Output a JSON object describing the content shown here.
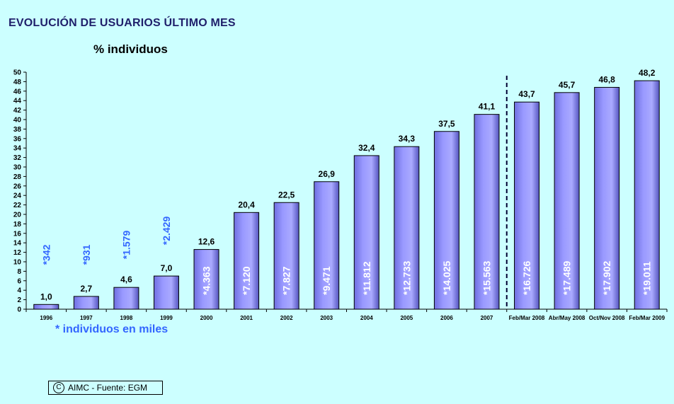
{
  "title": "EVOLUCIÓN DE USUARIOS ÚLTIMO MES",
  "subtitle": "% individuos",
  "note": "* individuos en miles",
  "source": "AIMC - Fuente: EGM",
  "colors": {
    "background": "#ccffff",
    "bar_fill": "#9999ff",
    "bar_edge": "#000000",
    "users_label_outside": "#3366ff",
    "users_label_inside": "#ffffff",
    "title": "#1f1f6b"
  },
  "chart_data": {
    "type": "bar",
    "title": "EVOLUCIÓN DE USUARIOS ÚLTIMO MES",
    "ylabel": "% individuos",
    "xlabel": "",
    "ylim": [
      0,
      50
    ],
    "yticks": [
      0,
      2,
      4,
      6,
      8,
      10,
      12,
      14,
      16,
      18,
      20,
      22,
      24,
      26,
      28,
      30,
      32,
      34,
      36,
      38,
      40,
      42,
      44,
      46,
      48,
      50
    ],
    "grid": false,
    "categories": [
      "1996",
      "1997",
      "1998",
      "1999",
      "2000",
      "2001",
      "2002",
      "2003",
      "2004",
      "2005",
      "2006",
      "2007",
      "Feb/Mar 2008",
      "Abr/May 2008",
      "Oct/Nov 2008",
      "Feb/Mar 2009"
    ],
    "values": [
      1.0,
      2.7,
      4.6,
      7.0,
      12.6,
      20.4,
      22.5,
      26.9,
      32.4,
      34.3,
      37.5,
      41.1,
      43.7,
      45.7,
      46.8,
      48.2
    ],
    "value_labels": [
      "1,0",
      "2,7",
      "4,6",
      "7,0",
      "12,6",
      "20,4",
      "22,5",
      "26,9",
      "32,4",
      "34,3",
      "37,5",
      "41,1",
      "43,7",
      "45,7",
      "46,8",
      "48,2"
    ],
    "users_thousands": [
      "*342",
      "*931",
      "*1.579",
      "*2.429",
      "*4.363",
      "*7.120",
      "*7.827",
      "*9.471",
      "*11.812",
      "*12.733",
      "*14.025",
      "*15.563",
      "*16.726",
      "*17.489",
      "*17.902",
      "*19.011"
    ],
    "separator_after_category": "2007"
  }
}
